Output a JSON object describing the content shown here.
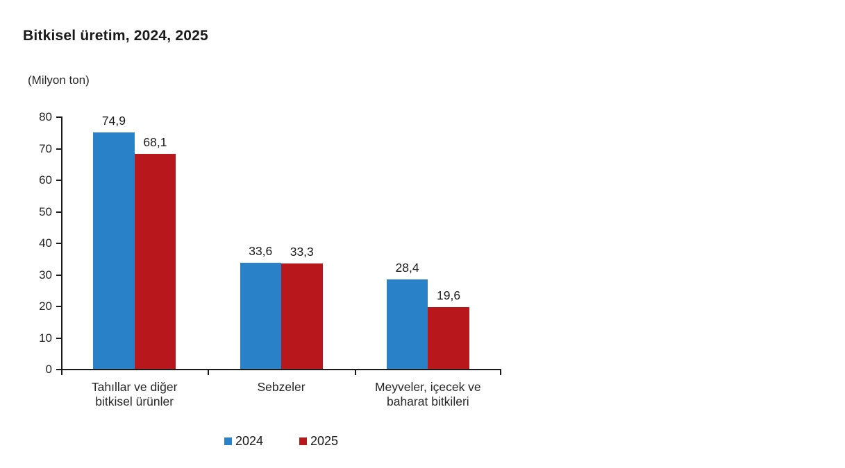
{
  "chart": {
    "title": "Bitkisel üretim, 2024, 2025",
    "unit_label": "(Milyon ton)"
  },
  "chart_data": {
    "type": "bar",
    "title": "Bitkisel üretim, 2024, 2025",
    "unit": "Milyon ton",
    "categories": [
      "Tahıllar ve diğer bitkisel ürünler",
      "Sebzeler",
      "Meyveler, içecek ve baharat bitkileri"
    ],
    "category_label_lines": [
      [
        "Tahıllar ve diğer",
        "bitkisel ürünler"
      ],
      [
        "Sebzeler"
      ],
      [
        "Meyveler, içecek ve",
        "baharat  bitkileri"
      ]
    ],
    "series": [
      {
        "name": "2024",
        "color": "#2982C8",
        "values": [
          74.9,
          33.6,
          28.4
        ],
        "value_labels": [
          "74,9",
          "33,6",
          "28,4"
        ]
      },
      {
        "name": "2025",
        "color": "#B8181C",
        "values": [
          68.1,
          33.3,
          19.6
        ],
        "value_labels": [
          "68,1",
          "33,3",
          "19,6"
        ]
      }
    ],
    "ylim": [
      0,
      80
    ],
    "ytick_step": 10,
    "ytick_labels": [
      "0",
      "10",
      "20",
      "30",
      "40",
      "50",
      "60",
      "70",
      "80"
    ],
    "grid": false,
    "legend_position": "bottom",
    "legend": [
      {
        "label": "2024",
        "color": "#2982C8"
      },
      {
        "label": "2025",
        "color": "#B8181C"
      }
    ]
  }
}
